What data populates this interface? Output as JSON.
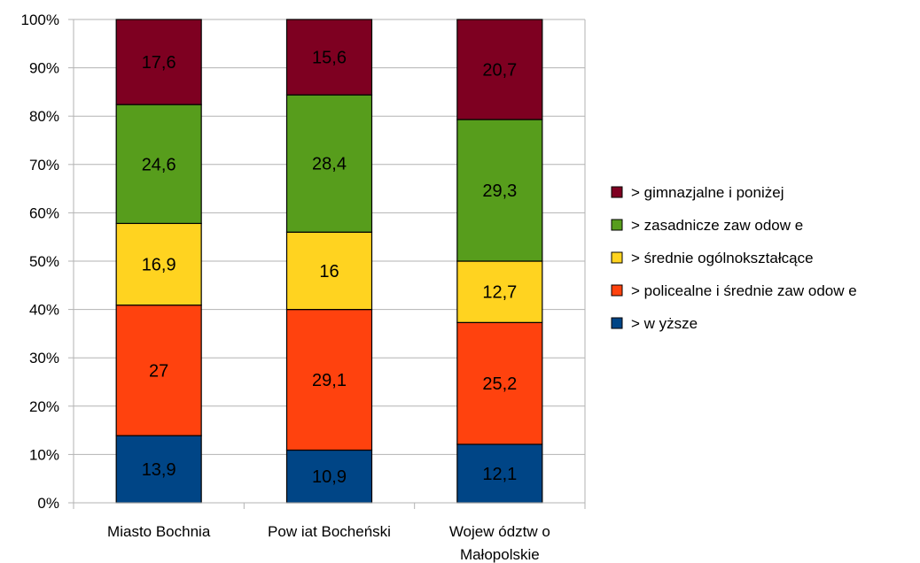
{
  "chart_data": {
    "type": "bar",
    "stacked": true,
    "percent": true,
    "categories": [
      "Miasto Bochnia",
      "Pow iat Bocheński",
      "Wojew ództw o Małopolskie"
    ],
    "series": [
      {
        "name": "> w yższe",
        "color": "#004586",
        "values": [
          13.9,
          10.9,
          12.1
        ]
      },
      {
        "name": "> policealne i średnie zaw odow e",
        "color": "#ff420e",
        "values": [
          27,
          29.1,
          25.2
        ]
      },
      {
        "name": "> średnie ogólnokształcące",
        "color": "#ffd320",
        "values": [
          16.9,
          16,
          12.7
        ]
      },
      {
        "name": "> zasadnicze zaw odow e",
        "color": "#579d1c",
        "values": [
          24.6,
          28.4,
          29.3
        ]
      },
      {
        "name": "> gimnazjalne i poniżej",
        "color": "#7e0021",
        "values": [
          17.6,
          15.6,
          20.7
        ]
      }
    ],
    "value_labels": [
      [
        "13,9",
        "10,9",
        "12,1"
      ],
      [
        "27",
        "29,1",
        "25,2"
      ],
      [
        "16,9",
        "16",
        "12,7"
      ],
      [
        "24,6",
        "28,4",
        "29,3"
      ],
      [
        "17,6",
        "15,6",
        "20,7"
      ]
    ],
    "y_ticks": [
      "0%",
      "10%",
      "20%",
      "30%",
      "40%",
      "50%",
      "60%",
      "70%",
      "80%",
      "90%",
      "100%"
    ],
    "ylim": [
      0,
      100
    ],
    "title": "",
    "xlabel": "",
    "ylabel": "",
    "grid": true,
    "legend": "right"
  }
}
